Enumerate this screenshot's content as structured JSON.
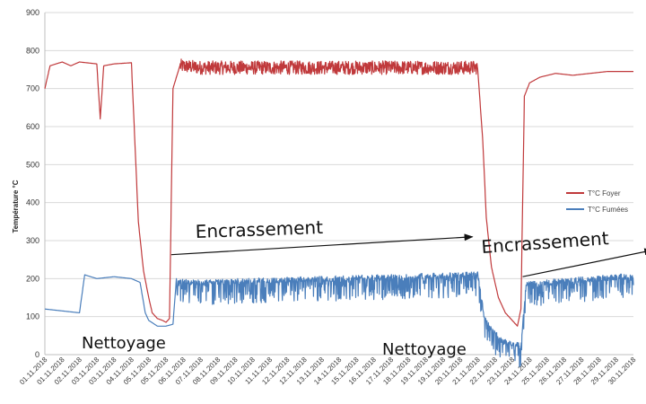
{
  "chart_data": {
    "type": "line",
    "ylabel": "Température °C",
    "ylim": [
      0,
      900
    ],
    "yticks": [
      "0",
      "100",
      "200",
      "300",
      "400",
      "500",
      "600",
      "700",
      "800",
      "900"
    ],
    "x_categories": [
      "01.11.2018",
      "01.11.2018",
      "02.11.2018",
      "03.11.2018",
      "03.11.2018",
      "04.11.2018",
      "05.11.2018",
      "05.11.2018",
      "06.11.2018",
      "07.11.2018",
      "08.11.2018",
      "09.11.2018",
      "10.11.2018",
      "11.11.2018",
      "12.11.2018",
      "12.11.2018",
      "13.11.2018",
      "14.11.2018",
      "15.11.2018",
      "16.11.2018",
      "17.11.2018",
      "18.11.2018",
      "19.11.2018",
      "19.11.2018",
      "20.11.2018",
      "21.11.2018",
      "22.11.2018",
      "23.11.2018",
      "24.11.2018",
      "25.11.2018",
      "26.11.2018",
      "27.11.2018",
      "28.11.2018",
      "29.11.2018",
      "30.11.2018"
    ],
    "grid": true,
    "legend_position": "right",
    "series": [
      {
        "name": "T°C Foyer",
        "color": "#c0393b",
        "values": [
          [
            0,
            700
          ],
          [
            0.3,
            760
          ],
          [
            1,
            770
          ],
          [
            1.5,
            760
          ],
          [
            2,
            770
          ],
          [
            3,
            765
          ],
          [
            3.2,
            620
          ],
          [
            3.4,
            760
          ],
          [
            4,
            765
          ],
          [
            5,
            768
          ],
          [
            5.2,
            560
          ],
          [
            5.4,
            350
          ],
          [
            5.7,
            220
          ],
          [
            6,
            150
          ],
          [
            6.2,
            110
          ],
          [
            6.5,
            95
          ],
          [
            6.8,
            90
          ],
          [
            7,
            85
          ],
          [
            7.2,
            95
          ],
          [
            7.4,
            700
          ],
          [
            7.8,
            760
          ],
          [
            9,
            755
          ],
          [
            12,
            755
          ],
          [
            16,
            755
          ],
          [
            20,
            755
          ],
          [
            24,
            755
          ],
          [
            25,
            755
          ],
          [
            25.3,
            560
          ],
          [
            25.5,
            360
          ],
          [
            25.8,
            230
          ],
          [
            26.2,
            150
          ],
          [
            26.6,
            110
          ],
          [
            27,
            90
          ],
          [
            27.3,
            75
          ],
          [
            27.5,
            120
          ],
          [
            27.7,
            680
          ],
          [
            28,
            715
          ],
          [
            28.6,
            730
          ],
          [
            29.5,
            740
          ],
          [
            30.5,
            735
          ],
          [
            31.5,
            740
          ],
          [
            32.5,
            745
          ],
          [
            34,
            745
          ],
          [
            35,
            745
          ]
        ],
        "noise_from": 7.8,
        "noise_to": 25,
        "noise_amp": 18
      },
      {
        "name": "T°C Fumées",
        "color": "#4a7ebb",
        "values": [
          [
            0,
            120
          ],
          [
            1,
            115
          ],
          [
            2,
            110
          ],
          [
            2.3,
            210
          ],
          [
            3,
            200
          ],
          [
            4,
            205
          ],
          [
            5,
            200
          ],
          [
            5.5,
            190
          ],
          [
            5.8,
            110
          ],
          [
            6,
            90
          ],
          [
            6.5,
            75
          ],
          [
            7,
            75
          ],
          [
            7.4,
            80
          ],
          [
            7.6,
            200
          ],
          [
            9,
            195
          ],
          [
            12,
            200
          ],
          [
            16,
            205
          ],
          [
            20,
            210
          ],
          [
            24,
            215
          ],
          [
            25,
            220
          ],
          [
            25.4,
            100
          ],
          [
            25.8,
            70
          ],
          [
            26.5,
            40
          ],
          [
            27,
            32
          ],
          [
            27.5,
            30
          ],
          [
            27.8,
            190
          ],
          [
            30,
            200
          ],
          [
            33,
            210
          ],
          [
            35,
            215
          ]
        ],
        "noise_from": 7.6,
        "noise_to": 35,
        "noise_amp": 45
      }
    ],
    "annotations": [
      {
        "text": "Nettoyage"
      },
      {
        "text": "Nettoyage"
      },
      {
        "text": "Encrassement"
      },
      {
        "text": "Encrassement"
      }
    ]
  }
}
